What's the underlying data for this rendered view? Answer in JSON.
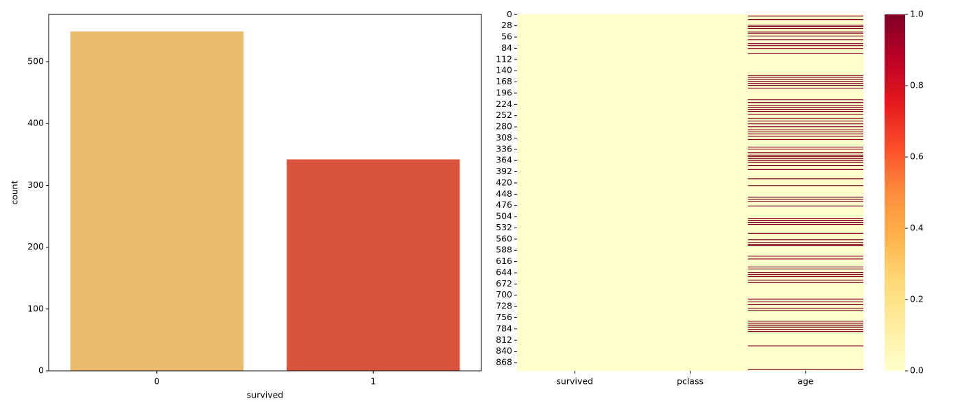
{
  "chart_data": [
    {
      "type": "bar",
      "xlabel": "survived",
      "ylabel": "count",
      "categories": [
        "0",
        "1"
      ],
      "values": [
        549,
        342
      ],
      "colors": [
        "#e9bb6c",
        "#d9533f"
      ],
      "ylim": [
        0,
        576.5
      ],
      "yticks": [
        0,
        100,
        200,
        300,
        400,
        500
      ]
    },
    {
      "type": "heatmap",
      "ylim": [
        0,
        889
      ],
      "columns": [
        {
          "name": "survived",
          "ones": []
        },
        {
          "name": "pclass",
          "ones": []
        },
        {
          "name": "age",
          "ones": [
            3,
            12,
            26,
            29,
            34,
            43,
            46,
            53,
            62,
            72,
            77,
            84,
            97,
            152,
            156,
            161,
            166,
            171,
            176,
            183,
            212,
            219,
            226,
            231,
            236,
            241,
            248,
            258,
            265,
            272,
            279,
            287,
            292,
            297,
            303,
            311,
            330,
            335,
            344,
            350,
            354,
            359,
            364,
            369,
            376,
            386,
            409,
            426,
            455,
            460,
            465,
            477,
            508,
            513,
            518,
            523,
            545,
            561,
            568,
            573,
            576,
            602,
            609,
            629,
            634,
            643,
            648,
            653,
            662,
            668,
            709,
            716,
            723,
            732,
            737,
            764,
            769,
            774,
            779,
            785,
            790,
            826,
            885
          ]
        }
      ],
      "yticks": [
        0,
        28,
        56,
        84,
        112,
        140,
        168,
        196,
        224,
        252,
        280,
        308,
        336,
        364,
        392,
        420,
        448,
        476,
        504,
        532,
        560,
        588,
        616,
        644,
        672,
        700,
        728,
        756,
        784,
        812,
        840,
        868
      ],
      "colormap": [
        "#ffffcc",
        "#ffeda0",
        "#fed976",
        "#feb24c",
        "#fd8d3c",
        "#fc4e2a",
        "#e31a1c",
        "#bd0026",
        "#800026"
      ],
      "colorbar_lim": [
        0,
        1
      ],
      "colorbar_ticks": [
        {
          "value": 0,
          "label": "0.0"
        },
        {
          "value": 0.2,
          "label": "0.2"
        },
        {
          "value": 0.4,
          "label": "0.4"
        },
        {
          "value": 0.6,
          "label": "0.6"
        },
        {
          "value": 0.8,
          "label": "0.8"
        },
        {
          "value": 1,
          "label": "1.0"
        }
      ]
    }
  ]
}
